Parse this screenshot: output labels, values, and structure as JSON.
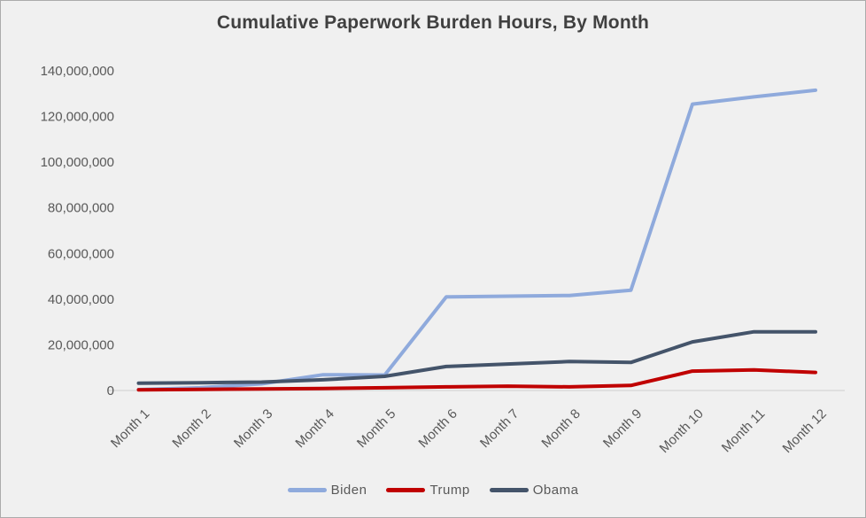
{
  "chart": {
    "title": "Cumulative Paperwork Burden Hours, By Month",
    "background_color": "#F0F0F0",
    "border_color": "#ABABAB",
    "title_color": "#404040",
    "axis_text_color": "#595959",
    "axis_line_color": "#D9D9D9"
  },
  "chart_data": {
    "type": "line",
    "title": "Cumulative Paperwork Burden Hours, By Month",
    "categories": [
      "Month 1",
      "Month 2",
      "Month 3",
      "Month 4",
      "Month 5",
      "Month 6",
      "Month 7",
      "Month 8",
      "Month 9",
      "Month 10",
      "Month 11",
      "Month 12"
    ],
    "series": [
      {
        "name": "Biden",
        "color": "#8FAADC",
        "values": [
          400000,
          1200000,
          2900000,
          6900000,
          6800000,
          41000000,
          41300000,
          41600000,
          43900000,
          125400000,
          128600000,
          131500000
        ]
      },
      {
        "name": "Trump",
        "color": "#C00000",
        "values": [
          300000,
          500000,
          700000,
          900000,
          1200000,
          1600000,
          1900000,
          1600000,
          2200000,
          8500000,
          9000000,
          7900000
        ]
      },
      {
        "name": "Obama",
        "color": "#44546A",
        "values": [
          3200000,
          3400000,
          3700000,
          4700000,
          6200000,
          10500000,
          11600000,
          12700000,
          12300000,
          21300000,
          25700000,
          25700000
        ]
      }
    ],
    "xlabel": "",
    "ylabel": "",
    "ylim": [
      0,
      140000000
    ],
    "y_ticks": [
      0,
      20000000,
      40000000,
      60000000,
      80000000,
      100000000,
      120000000,
      140000000
    ],
    "grid": "off",
    "legend_position": "bottom"
  }
}
